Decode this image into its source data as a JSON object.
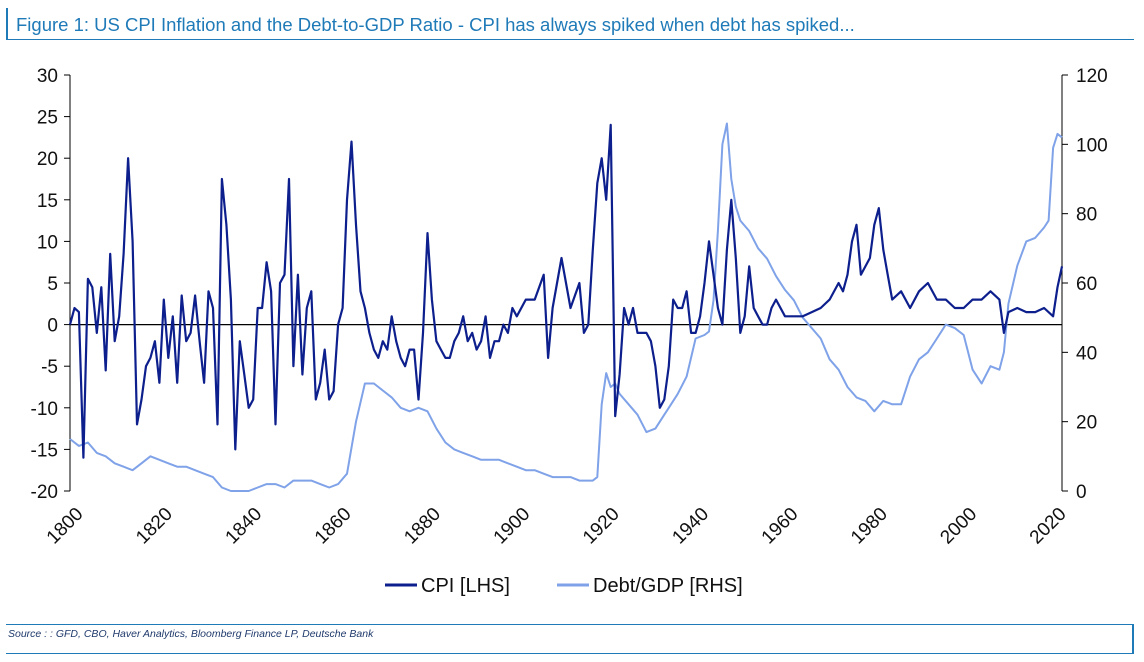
{
  "title": "Figure 1: US CPI Inflation and the Debt-to-GDP Ratio - CPI has always spiked when debt has spiked...",
  "source": "Source : : GFD, CBO, Haver Analytics, Bloomberg Finance LP, Deutsche Bank",
  "colors": {
    "cpi": "#0d1f8c",
    "debt": "#7fa2e8",
    "accent": "#1f7ab8",
    "axis": "#000000"
  },
  "chart_data": {
    "type": "line",
    "title": "Figure 1: US CPI Inflation and the Debt-to-GDP Ratio - CPI has always spiked when debt has spiked...",
    "xlim": [
      1800,
      2022
    ],
    "x_ticks": [
      "1800",
      "1820",
      "1840",
      "1860",
      "1880",
      "1900",
      "1920",
      "1940",
      "1960",
      "1980",
      "2000",
      "2020"
    ],
    "ylim_left": [
      -20,
      30
    ],
    "left_ticks": [
      "30",
      "25",
      "20",
      "15",
      "10",
      "5",
      "0",
      "-5",
      "-10",
      "-15",
      "-20"
    ],
    "ylim_right": [
      0,
      120
    ],
    "right_ticks": [
      "120",
      "100",
      "80",
      "60",
      "40",
      "20",
      "0"
    ],
    "legend": {
      "position": "bottom-center",
      "items": [
        "CPI [LHS]",
        "Debt/GDP [RHS]"
      ]
    },
    "series": [
      {
        "name": "CPI [LHS]",
        "axis": "left",
        "x": [
          1800,
          1801,
          1802,
          1803,
          1804,
          1805,
          1806,
          1807,
          1808,
          1809,
          1810,
          1811,
          1812,
          1813,
          1814,
          1815,
          1816,
          1817,
          1818,
          1819,
          1820,
          1821,
          1822,
          1823,
          1824,
          1825,
          1826,
          1827,
          1828,
          1829,
          1830,
          1831,
          1832,
          1833,
          1834,
          1835,
          1836,
          1837,
          1838,
          1839,
          1840,
          1841,
          1842,
          1843,
          1844,
          1845,
          1846,
          1847,
          1848,
          1849,
          1850,
          1851,
          1852,
          1853,
          1854,
          1855,
          1856,
          1857,
          1858,
          1859,
          1860,
          1861,
          1862,
          1863,
          1864,
          1865,
          1866,
          1867,
          1868,
          1869,
          1870,
          1871,
          1872,
          1873,
          1874,
          1875,
          1876,
          1877,
          1878,
          1879,
          1880,
          1881,
          1882,
          1883,
          1884,
          1885,
          1886,
          1887,
          1888,
          1889,
          1890,
          1891,
          1892,
          1893,
          1894,
          1895,
          1896,
          1897,
          1898,
          1899,
          1900,
          1902,
          1904,
          1906,
          1907,
          1908,
          1910,
          1912,
          1914,
          1915,
          1916,
          1917,
          1918,
          1919,
          1920,
          1921,
          1922,
          1923,
          1924,
          1925,
          1926,
          1927,
          1928,
          1929,
          1930,
          1931,
          1932,
          1933,
          1934,
          1935,
          1936,
          1937,
          1938,
          1939,
          1940,
          1941,
          1942,
          1943,
          1944,
          1945,
          1946,
          1947,
          1948,
          1949,
          1950,
          1951,
          1952,
          1953,
          1954,
          1955,
          1956,
          1957,
          1958,
          1960,
          1962,
          1964,
          1966,
          1968,
          1970,
          1972,
          1973,
          1974,
          1975,
          1976,
          1977,
          1978,
          1979,
          1980,
          1981,
          1982,
          1983,
          1984,
          1986,
          1988,
          1990,
          1992,
          1994,
          1996,
          1998,
          2000,
          2002,
          2004,
          2006,
          2008,
          2009,
          2010,
          2012,
          2014,
          2016,
          2018,
          2020,
          2021,
          2022
        ],
        "values": [
          0,
          2,
          1.5,
          -16,
          5.5,
          4.5,
          -1,
          4.5,
          -5.5,
          8.5,
          -2,
          1,
          8.5,
          20,
          10,
          -12,
          -9,
          -5,
          -4,
          -2,
          -7,
          3,
          -4,
          1,
          -7,
          3.5,
          -2,
          -1,
          3.5,
          -2,
          -7,
          4,
          2,
          -12,
          17.5,
          12,
          3,
          -15,
          -2,
          -6,
          -10,
          -9,
          2,
          2,
          7.5,
          4,
          -12,
          5,
          6,
          17.5,
          -5,
          6,
          -6,
          2,
          4,
          -9,
          -7,
          -3,
          -9,
          -8,
          0,
          2,
          15,
          22,
          12,
          4,
          2,
          -1,
          -3,
          -4,
          -2,
          -3,
          1,
          -2,
          -4,
          -5,
          -3,
          -3,
          -9,
          -1,
          11,
          3,
          -2,
          -3,
          -4,
          -4,
          -2,
          -1,
          1,
          -2,
          -1,
          -3,
          -2,
          1,
          -4,
          -2,
          -2,
          0,
          -1,
          2,
          1,
          3,
          3,
          6,
          -4,
          2,
          8,
          2,
          5,
          -1,
          0,
          9,
          17,
          20,
          15,
          24,
          -11,
          -6,
          2,
          0,
          2,
          -1,
          -1,
          -1,
          -2,
          -5,
          -10,
          -9,
          -5,
          3,
          2,
          2,
          4,
          -1,
          -1,
          1,
          5,
          10,
          6,
          2,
          0,
          9,
          15,
          8,
          -1,
          1,
          7,
          2,
          1,
          0,
          0,
          2,
          3,
          1,
          1,
          1,
          1.5,
          2,
          3,
          5,
          4,
          6,
          10,
          12,
          6,
          7,
          8,
          12,
          14,
          9,
          6,
          3,
          4,
          2,
          4,
          5,
          3,
          3,
          2,
          2,
          3,
          3,
          4,
          3,
          -1,
          1.5,
          2,
          1.5,
          1.5,
          2,
          1,
          4.5,
          7
        ],
        "color": "#0d1f8c"
      },
      {
        "name": "Debt/GDP [RHS]",
        "axis": "right",
        "x": [
          1800,
          1802,
          1804,
          1806,
          1808,
          1810,
          1812,
          1814,
          1816,
          1818,
          1820,
          1822,
          1824,
          1826,
          1828,
          1830,
          1832,
          1834,
          1836,
          1838,
          1840,
          1842,
          1844,
          1846,
          1848,
          1850,
          1852,
          1854,
          1856,
          1858,
          1860,
          1862,
          1864,
          1866,
          1868,
          1870,
          1872,
          1874,
          1876,
          1878,
          1880,
          1882,
          1884,
          1886,
          1888,
          1890,
          1892,
          1894,
          1896,
          1898,
          1900,
          1902,
          1904,
          1906,
          1908,
          1910,
          1912,
          1914,
          1916,
          1917,
          1918,
          1919,
          1920,
          1921,
          1922,
          1923,
          1925,
          1927,
          1929,
          1931,
          1932,
          1933,
          1934,
          1936,
          1938,
          1940,
          1942,
          1943,
          1944,
          1945,
          1946,
          1947,
          1948,
          1949,
          1950,
          1952,
          1954,
          1956,
          1958,
          1960,
          1962,
          1964,
          1966,
          1968,
          1970,
          1972,
          1974,
          1976,
          1978,
          1980,
          1982,
          1984,
          1986,
          1988,
          1990,
          1992,
          1994,
          1996,
          1998,
          2000,
          2002,
          2004,
          2006,
          2008,
          2009,
          2010,
          2012,
          2014,
          2016,
          2018,
          2019,
          2020,
          2021,
          2022
        ],
        "values": [
          15,
          13,
          14,
          11,
          10,
          8,
          7,
          6,
          8,
          10,
          9,
          8,
          7,
          7,
          6,
          5,
          4,
          1,
          0,
          0,
          0,
          1,
          2,
          2,
          1,
          3,
          3,
          3,
          2,
          1,
          2,
          5,
          20,
          31,
          31,
          29,
          27,
          24,
          23,
          24,
          23,
          18,
          14,
          12,
          11,
          10,
          9,
          9,
          9,
          8,
          7,
          6,
          6,
          5,
          4,
          4,
          4,
          3,
          3,
          3,
          4,
          25,
          34,
          30,
          31,
          28,
          25,
          22,
          17,
          18,
          20,
          22,
          24,
          28,
          33,
          44,
          45,
          46,
          55,
          75,
          100,
          106,
          90,
          82,
          78,
          75,
          70,
          67,
          62,
          58,
          55,
          50,
          47,
          44,
          38,
          35,
          30,
          27,
          26,
          23,
          26,
          25,
          25,
          33,
          38,
          40,
          44,
          48,
          47,
          45,
          35,
          31,
          36,
          35,
          40,
          54,
          65,
          72,
          73,
          76,
          78,
          99,
          103,
          102
        ],
        "color": "#7fa2e8"
      }
    ]
  }
}
